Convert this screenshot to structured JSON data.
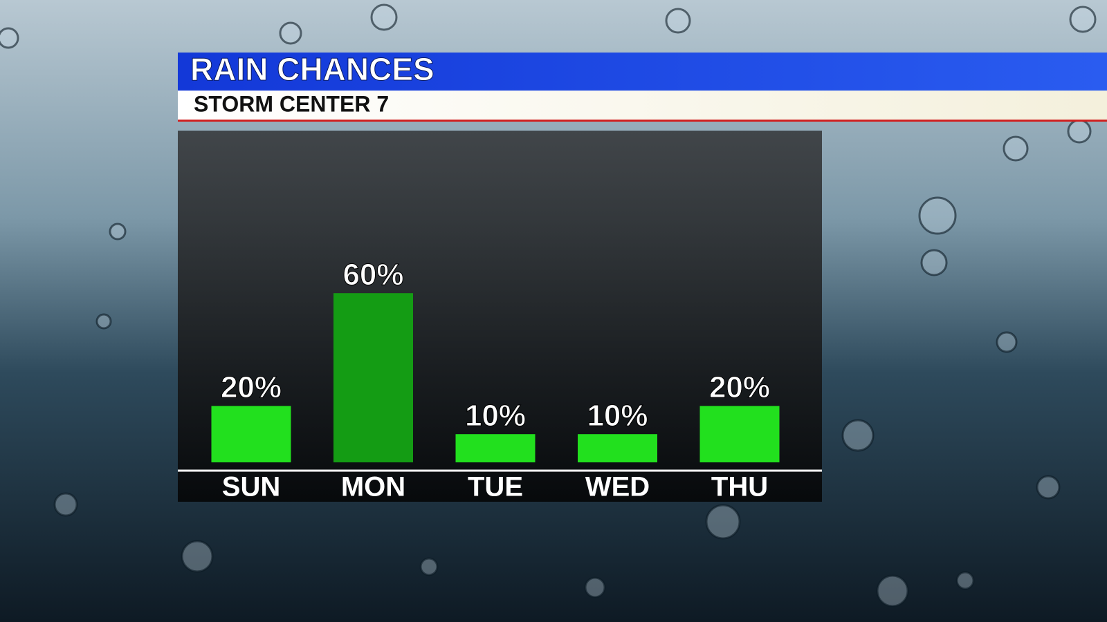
{
  "chart_data": {
    "type": "bar",
    "title": "RAIN CHANCES",
    "subtitle": "STORM CENTER 7",
    "categories": [
      "SUN",
      "MON",
      "TUE",
      "WED",
      "THU"
    ],
    "values": [
      20,
      60,
      10,
      10,
      20
    ],
    "value_labels": [
      "20%",
      "60%",
      "10%",
      "10%",
      "20%"
    ],
    "colors": [
      "#22e01e",
      "#149c14",
      "#22e01e",
      "#22e01e",
      "#22e01e"
    ]
  }
}
